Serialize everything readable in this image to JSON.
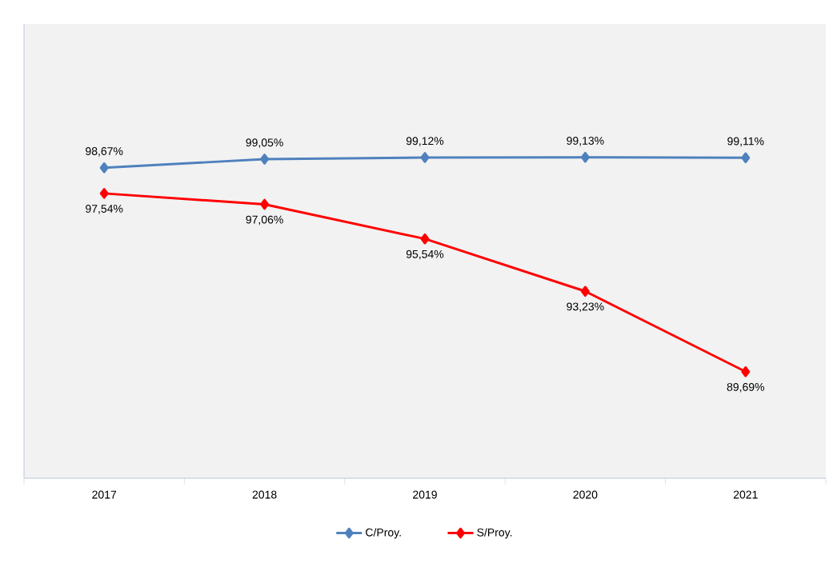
{
  "chart_data": {
    "type": "line",
    "categories": [
      "2017",
      "2018",
      "2019",
      "2020",
      "2021"
    ],
    "series": [
      {
        "name": "C/Proy.",
        "color": "#4f81bd",
        "values": [
          98.67,
          99.05,
          99.12,
          99.13,
          99.11
        ],
        "value_labels": [
          "98,67%",
          "99,05%",
          "99,12%",
          "99,13%",
          "99,11%"
        ]
      },
      {
        "name": "S/Proy.",
        "color": "#ff0000",
        "values": [
          97.54,
          97.06,
          95.54,
          93.23,
          89.69
        ],
        "value_labels": [
          "97,54%",
          "97,06%",
          "95,54%",
          "93,23%",
          "89,69%"
        ]
      }
    ],
    "ylim": [
      85,
      105
    ],
    "legend": "bottom",
    "marker": "diamond",
    "line_style": "solid"
  }
}
